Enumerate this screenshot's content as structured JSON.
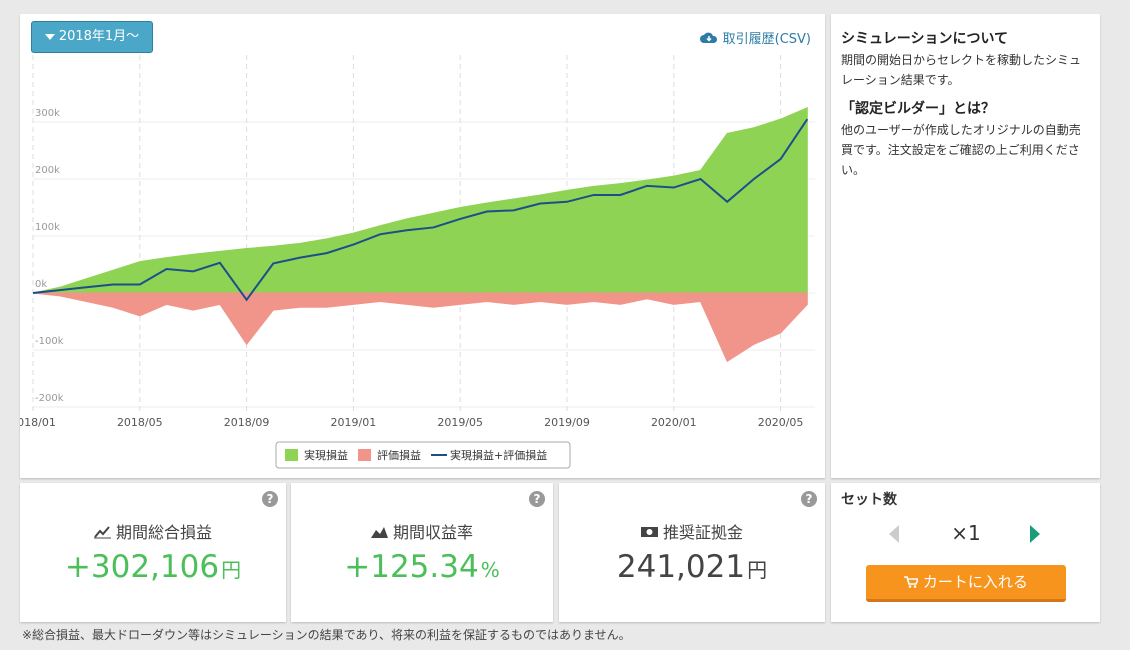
{
  "filter": {
    "label": "2018年1月～"
  },
  "download": {
    "label": "取引履歴(CSV)"
  },
  "chart_data": {
    "type": "area",
    "x": [
      "2018/01",
      "2018/02",
      "2018/03",
      "2018/04",
      "2018/05",
      "2018/06",
      "2018/07",
      "2018/08",
      "2018/09",
      "2018/10",
      "2018/11",
      "2018/12",
      "2019/01",
      "2019/02",
      "2019/03",
      "2019/04",
      "2019/05",
      "2019/06",
      "2019/07",
      "2019/08",
      "2019/09",
      "2019/10",
      "2019/11",
      "2019/12",
      "2020/01",
      "2020/02",
      "2020/03",
      "2020/04",
      "2020/05",
      "2020/06"
    ],
    "series": [
      {
        "name": "実現損益",
        "color": "#8ed354",
        "values": [
          0,
          10000,
          25000,
          40000,
          55000,
          62000,
          68000,
          73000,
          78000,
          82000,
          87000,
          95000,
          105000,
          118000,
          130000,
          140000,
          150000,
          158000,
          165000,
          172000,
          180000,
          187000,
          192000,
          198000,
          205000,
          215000,
          280000,
          290000,
          305000,
          325000
        ]
      },
      {
        "name": "評価損益",
        "color": "#f1958b",
        "values": [
          0,
          -5000,
          -15000,
          -25000,
          -40000,
          -20000,
          -30000,
          -20000,
          -90000,
          -30000,
          -25000,
          -25000,
          -20000,
          -15000,
          -20000,
          -25000,
          -20000,
          -15000,
          -20000,
          -15000,
          -20000,
          -15000,
          -20000,
          -10000,
          -20000,
          -15000,
          -120000,
          -90000,
          -70000,
          -20000
        ]
      },
      {
        "name": "実現損益+評価損益",
        "color": "#1b4f8a",
        "type": "line",
        "values": [
          0,
          5000,
          10000,
          15000,
          15000,
          42000,
          38000,
          53000,
          -12000,
          52000,
          62000,
          70000,
          85000,
          103000,
          110000,
          115000,
          130000,
          143000,
          145000,
          157000,
          160000,
          172000,
          172000,
          188000,
          185000,
          200000,
          160000,
          200000,
          235000,
          305000
        ]
      }
    ],
    "ylim": [
      -200000,
      400000
    ],
    "yticks": [
      {
        "value": -200000,
        "label": "-200k"
      },
      {
        "value": -100000,
        "label": "-100k"
      },
      {
        "value": 0,
        "label": "0k"
      },
      {
        "value": 100000,
        "label": "100k"
      },
      {
        "value": 200000,
        "label": "200k"
      },
      {
        "value": 300000,
        "label": "300k"
      }
    ],
    "xticks": [
      "2018/01",
      "2018/05",
      "2018/09",
      "2019/01",
      "2019/05",
      "2019/09",
      "2020/01",
      "2020/05"
    ],
    "grid": true
  },
  "sidebar": {
    "heading1": "シミュレーションについて",
    "text1": "期間の開始日からセレクトを稼動したシミュレーション結果です。",
    "heading2": "「認定ビルダー」とは？",
    "text2": "他のユーザーが作成したオリジナルの自動売買です。注文設定をご確認の上ご利用ください。"
  },
  "stats": [
    {
      "label": "期間総合損益",
      "value": "+302,106",
      "unit": "円",
      "help": "?"
    },
    {
      "label": "期間収益率",
      "value": "+125.34",
      "unit": "%",
      "help": "?"
    },
    {
      "label": "推奨証拠金",
      "value": "241,021",
      "unit": "円",
      "help": "?"
    }
  ],
  "set_count": {
    "title": "セット数",
    "count": "×1",
    "button": "カートに入れる"
  },
  "note": "※総合損益、最大ドローダウン等はシミュレーションの結果であり、将来の利益を保証するものではありません。"
}
